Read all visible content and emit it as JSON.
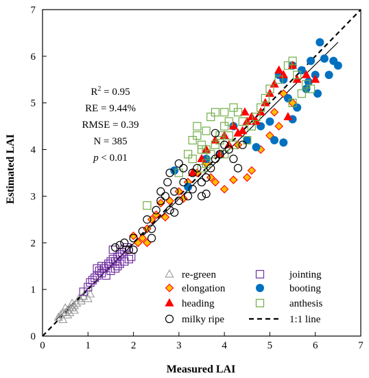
{
  "chart_data": {
    "type": "scatter",
    "title": "",
    "xlabel": "Measured LAI",
    "ylabel": "Estimated LAI",
    "xlim": [
      0,
      7
    ],
    "ylim": [
      0,
      7
    ],
    "xticks": [
      "0",
      "1",
      "2",
      "3",
      "4",
      "5",
      "6",
      "7"
    ],
    "yticks": [
      "0",
      "1",
      "2",
      "3",
      "4",
      "5",
      "6",
      "7"
    ],
    "grid": false,
    "legend_position": "bottom-right",
    "stats": {
      "r2_label": "R",
      "r2_sup": "2",
      "r2_value": " = 0.95",
      "re": "RE = 9.44%",
      "rmse": "RMSE = 0.39",
      "n": "N = 385",
      "p_symbol": "p",
      "p_value": " < 0.01"
    },
    "reference_line": {
      "name": "1:1 line",
      "x": [
        0,
        7
      ],
      "y": [
        0,
        7
      ],
      "style": "dashed"
    },
    "fit_line": {
      "x": [
        0.3,
        6.5
      ],
      "y": [
        0.35,
        6.3
      ],
      "style": "solid"
    },
    "series": [
      {
        "name": "re-green",
        "marker": "triangle-open",
        "color": "#9a9a9a",
        "points": [
          [
            0.35,
            0.4
          ],
          [
            0.4,
            0.45
          ],
          [
            0.45,
            0.5
          ],
          [
            0.5,
            0.5
          ],
          [
            0.5,
            0.6
          ],
          [
            0.55,
            0.55
          ],
          [
            0.6,
            0.6
          ],
          [
            0.6,
            0.5
          ],
          [
            0.65,
            0.7
          ],
          [
            0.7,
            0.65
          ],
          [
            0.75,
            0.7
          ],
          [
            0.8,
            0.8
          ],
          [
            0.85,
            0.75
          ],
          [
            0.9,
            0.85
          ],
          [
            1.0,
            0.8
          ],
          [
            1.05,
            0.9
          ],
          [
            0.55,
            0.45
          ],
          [
            0.7,
            0.55
          ],
          [
            0.45,
            0.35
          ],
          [
            0.65,
            0.6
          ]
        ]
      },
      {
        "name": "jointing",
        "marker": "square-open",
        "color": "#7030a0",
        "points": [
          [
            0.9,
            0.95
          ],
          [
            1.0,
            1.05
          ],
          [
            1.05,
            1.15
          ],
          [
            1.1,
            1.2
          ],
          [
            1.15,
            1.25
          ],
          [
            1.2,
            1.3
          ],
          [
            1.25,
            1.4
          ],
          [
            1.3,
            1.35
          ],
          [
            1.35,
            1.45
          ],
          [
            1.4,
            1.5
          ],
          [
            1.45,
            1.55
          ],
          [
            1.5,
            1.6
          ],
          [
            1.55,
            1.65
          ],
          [
            1.6,
            1.6
          ],
          [
            1.65,
            1.7
          ],
          [
            1.7,
            1.75
          ],
          [
            1.75,
            1.8
          ],
          [
            1.8,
            1.85
          ],
          [
            1.85,
            1.9
          ],
          [
            1.9,
            1.65
          ],
          [
            1.95,
            1.7
          ],
          [
            1.5,
            1.4
          ],
          [
            1.6,
            1.45
          ],
          [
            1.7,
            1.55
          ],
          [
            1.4,
            1.3
          ],
          [
            1.3,
            1.5
          ],
          [
            1.2,
            1.45
          ],
          [
            1.8,
            1.6
          ],
          [
            1.55,
            1.85
          ],
          [
            1.65,
            1.5
          ]
        ]
      },
      {
        "name": "elongation",
        "marker": "diamond",
        "color": "#ffc000",
        "stroke": "#ff0000",
        "points": [
          [
            2.0,
            2.15
          ],
          [
            2.1,
            2.0
          ],
          [
            2.2,
            2.1
          ],
          [
            2.3,
            2.3
          ],
          [
            2.4,
            2.5
          ],
          [
            2.5,
            2.6
          ],
          [
            2.6,
            2.85
          ],
          [
            2.8,
            2.9
          ],
          [
            3.0,
            3.1
          ],
          [
            3.2,
            3.3
          ],
          [
            3.4,
            3.5
          ],
          [
            3.6,
            3.7
          ],
          [
            3.8,
            3.3
          ],
          [
            4.0,
            3.15
          ],
          [
            4.2,
            3.35
          ],
          [
            4.5,
            3.4
          ],
          [
            4.6,
            3.55
          ],
          [
            4.8,
            4.0
          ],
          [
            5.0,
            4.3
          ],
          [
            5.2,
            4.5
          ],
          [
            5.3,
            5.2
          ],
          [
            5.5,
            5.0
          ],
          [
            2.3,
            2.0
          ],
          [
            2.7,
            2.55
          ],
          [
            3.1,
            2.95
          ],
          [
            3.7,
            3.4
          ],
          [
            4.3,
            4.1
          ],
          [
            5.1,
            4.8
          ]
        ]
      },
      {
        "name": "booting",
        "marker": "circle-filled",
        "color": "#0070c0",
        "points": [
          [
            2.9,
            3.55
          ],
          [
            3.2,
            3.2
          ],
          [
            3.6,
            3.8
          ],
          [
            3.9,
            3.9
          ],
          [
            4.5,
            4.2
          ],
          [
            4.8,
            4.5
          ],
          [
            5.0,
            4.6
          ],
          [
            5.1,
            4.2
          ],
          [
            5.2,
            5.6
          ],
          [
            5.3,
            5.5
          ],
          [
            5.4,
            5.1
          ],
          [
            5.5,
            5.8
          ],
          [
            5.6,
            4.9
          ],
          [
            5.7,
            5.7
          ],
          [
            5.8,
            5.3
          ],
          [
            5.9,
            5.9
          ],
          [
            6.0,
            5.6
          ],
          [
            6.1,
            6.3
          ],
          [
            6.2,
            5.95
          ],
          [
            6.3,
            5.6
          ],
          [
            6.4,
            5.9
          ],
          [
            6.5,
            5.8
          ],
          [
            5.5,
            4.65
          ],
          [
            5.3,
            4.15
          ],
          [
            4.7,
            4.05
          ],
          [
            5.85,
            5.45
          ],
          [
            6.05,
            5.2
          ],
          [
            4.2,
            4.5
          ]
        ]
      },
      {
        "name": "heading",
        "marker": "triangle-filled",
        "color": "#ff0000",
        "points": [
          [
            3.3,
            3.5
          ],
          [
            3.5,
            3.8
          ],
          [
            3.6,
            4.0
          ],
          [
            3.8,
            4.2
          ],
          [
            4.0,
            4.3
          ],
          [
            4.2,
            4.5
          ],
          [
            4.4,
            4.4
          ],
          [
            4.5,
            4.6
          ],
          [
            4.6,
            4.7
          ],
          [
            4.8,
            4.8
          ],
          [
            4.9,
            5.0
          ],
          [
            5.0,
            5.2
          ],
          [
            5.1,
            5.4
          ],
          [
            5.2,
            5.7
          ],
          [
            5.3,
            5.6
          ],
          [
            5.5,
            5.8
          ],
          [
            5.6,
            5.5
          ],
          [
            5.8,
            5.6
          ],
          [
            6.0,
            5.5
          ],
          [
            4.1,
            4.1
          ],
          [
            4.3,
            4.35
          ],
          [
            4.7,
            4.6
          ],
          [
            5.4,
            4.7
          ],
          [
            3.9,
            3.9
          ],
          [
            4.45,
            4.8
          ]
        ]
      },
      {
        "name": "anthesis",
        "marker": "square-open",
        "color": "#70ad47",
        "points": [
          [
            2.3,
            2.8
          ],
          [
            3.0,
            3.5
          ],
          [
            3.2,
            3.9
          ],
          [
            3.3,
            4.2
          ],
          [
            3.4,
            4.5
          ],
          [
            3.5,
            4.0
          ],
          [
            3.6,
            4.4
          ],
          [
            3.7,
            4.7
          ],
          [
            3.8,
            4.8
          ],
          [
            3.9,
            4.3
          ],
          [
            4.0,
            4.5
          ],
          [
            4.1,
            4.6
          ],
          [
            4.2,
            4.9
          ],
          [
            4.3,
            4.8
          ],
          [
            4.4,
            4.6
          ],
          [
            4.5,
            4.2
          ],
          [
            4.6,
            4.5
          ],
          [
            4.7,
            4.7
          ],
          [
            4.8,
            4.9
          ],
          [
            4.9,
            5.1
          ],
          [
            5.0,
            5.3
          ],
          [
            5.2,
            5.5
          ],
          [
            5.4,
            5.8
          ],
          [
            5.5,
            5.9
          ],
          [
            5.6,
            5.6
          ],
          [
            5.8,
            5.4
          ],
          [
            5.9,
            5.3
          ],
          [
            5.7,
            5.2
          ],
          [
            5.5,
            5.0
          ],
          [
            3.5,
            4.1
          ],
          [
            3.6,
            3.7
          ],
          [
            3.7,
            3.9
          ],
          [
            3.8,
            4.1
          ],
          [
            4.0,
            3.9
          ],
          [
            4.2,
            4.1
          ],
          [
            3.4,
            4.3
          ],
          [
            3.3,
            3.8
          ],
          [
            4.1,
            4.3
          ],
          [
            3.9,
            4.2
          ],
          [
            4.0,
            4.8
          ],
          [
            3.5,
            3.6
          ],
          [
            3.6,
            4.0
          ]
        ]
      },
      {
        "name": "milky ripe",
        "marker": "circle-open",
        "color": "#000000",
        "points": [
          [
            1.6,
            1.9
          ],
          [
            1.7,
            1.95
          ],
          [
            1.8,
            2.0
          ],
          [
            1.9,
            1.85
          ],
          [
            2.0,
            2.1
          ],
          [
            2.2,
            2.25
          ],
          [
            2.3,
            2.5
          ],
          [
            2.4,
            2.3
          ],
          [
            2.5,
            2.7
          ],
          [
            2.6,
            2.9
          ],
          [
            2.7,
            3.0
          ],
          [
            2.75,
            3.3
          ],
          [
            2.8,
            2.7
          ],
          [
            2.9,
            3.1
          ],
          [
            3.0,
            2.9
          ],
          [
            3.1,
            3.3
          ],
          [
            3.2,
            3.0
          ],
          [
            3.3,
            3.5
          ],
          [
            3.4,
            3.6
          ],
          [
            3.5,
            3.3
          ],
          [
            3.6,
            3.4
          ],
          [
            3.7,
            3.6
          ],
          [
            3.8,
            3.8
          ],
          [
            3.9,
            3.9
          ],
          [
            4.0,
            4.1
          ],
          [
            4.1,
            4.0
          ],
          [
            4.2,
            3.8
          ],
          [
            4.3,
            3.6
          ],
          [
            3.5,
            3.0
          ],
          [
            3.6,
            3.05
          ],
          [
            3.3,
            3.15
          ],
          [
            2.9,
            2.65
          ],
          [
            2.6,
            3.1
          ],
          [
            3.0,
            3.7
          ],
          [
            2.8,
            3.5
          ],
          [
            3.1,
            3.6
          ],
          [
            3.8,
            4.35
          ],
          [
            4.4,
            4.1
          ],
          [
            2.4,
            2.1
          ],
          [
            2.0,
            1.85
          ]
        ]
      }
    ],
    "legend": [
      {
        "key": "re-green",
        "label": "re-green",
        "marker": "triangle-open",
        "color": "#9a9a9a"
      },
      {
        "key": "jointing",
        "label": "jointing",
        "marker": "square-open",
        "color": "#7030a0"
      },
      {
        "key": "elongation",
        "label": "elongation",
        "marker": "diamond",
        "color": "#ffc000",
        "stroke": "#ff0000"
      },
      {
        "key": "booting",
        "label": "booting",
        "marker": "circle-filled",
        "color": "#0070c0"
      },
      {
        "key": "heading",
        "label": "heading",
        "marker": "triangle-filled",
        "color": "#ff0000"
      },
      {
        "key": "anthesis",
        "label": "anthesis",
        "marker": "square-open",
        "color": "#70ad47"
      },
      {
        "key": "milky",
        "label": "milky ripe",
        "marker": "circle-open",
        "color": "#000000"
      },
      {
        "key": "oneone",
        "label": "1:1 line",
        "marker": "dashed-line",
        "color": "#000000"
      }
    ]
  }
}
